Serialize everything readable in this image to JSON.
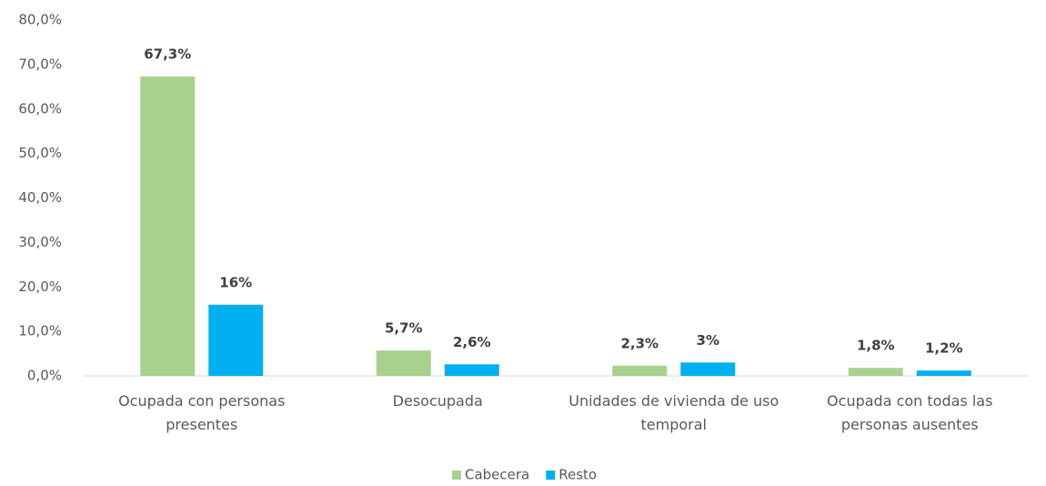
{
  "chart_data": {
    "type": "bar",
    "categories": [
      "Ocupada con personas presentes",
      "Desocupada",
      "Unidades de vivienda de uso temporal",
      "Ocupada con todas las personas ausentes"
    ],
    "series": [
      {
        "name": "Cabecera",
        "color": "#a9d18e",
        "values": [
          67.3,
          5.7,
          2.3,
          1.8
        ],
        "value_labels": [
          "67,3%",
          "5,7%",
          "2,3%",
          "1,8%"
        ]
      },
      {
        "name": "Resto",
        "color": "#00b0f0",
        "values": [
          16,
          2.6,
          3,
          1.2
        ],
        "value_labels": [
          "16%",
          "2,6%",
          "3%",
          "1,2%"
        ]
      }
    ],
    "ylim": [
      0,
      80
    ],
    "yticks": [
      {
        "value": 0,
        "label": "0,0%"
      },
      {
        "value": 10,
        "label": "10,0%"
      },
      {
        "value": 20,
        "label": "20,0%"
      },
      {
        "value": 30,
        "label": "30,0%"
      },
      {
        "value": 40,
        "label": "40,0%"
      },
      {
        "value": 50,
        "label": "50,0%"
      },
      {
        "value": 60,
        "label": "60,0%"
      },
      {
        "value": 70,
        "label": "70,0%"
      },
      {
        "value": 80,
        "label": "80,0%"
      }
    ],
    "grid": false,
    "legend": "bottom"
  }
}
